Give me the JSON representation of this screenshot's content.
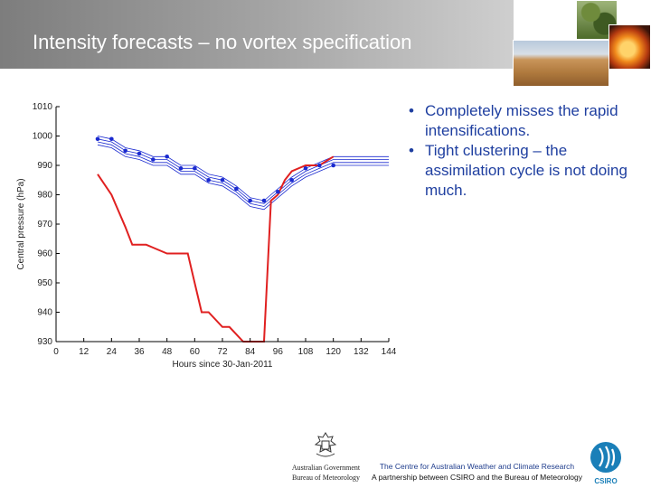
{
  "slide": {
    "title": "Intensity forecasts – no vortex specification",
    "bullets": [
      "Completely misses the rapid intensifications.",
      "Tight clustering – the assimilation cycle is not doing much."
    ],
    "footer": {
      "gov_line1": "Australian Government",
      "gov_line2": "Bureau of Meteorology",
      "centre_line1": "The Centre for Australian Weather and Climate Research",
      "centre_line2": "A partnership between CSIRO and the Bureau of Meteorology",
      "csiro_logo": "CSIRO"
    }
  },
  "chart_data": {
    "type": "line",
    "xlabel": "Hours since 30-Jan-2011",
    "ylabel": "Central pressure (hPa)",
    "xlim": [
      0,
      144
    ],
    "ylim": [
      930,
      1010
    ],
    "xticks": [
      0,
      12,
      24,
      36,
      48,
      60,
      72,
      84,
      96,
      108,
      120,
      132,
      144
    ],
    "yticks": [
      930,
      940,
      950,
      960,
      970,
      980,
      990,
      1000,
      1010
    ],
    "grid": false,
    "colors": {
      "observed": "#e02020",
      "ensemble": "#1a2ad0",
      "forecast_points": "#1a2ad0"
    },
    "series": [
      {
        "role": "observed",
        "x": [
          18,
          24,
          30,
          33,
          39,
          42,
          48,
          54,
          57,
          60,
          63,
          66,
          72,
          75,
          81,
          87,
          90,
          93,
          96,
          99,
          102,
          108,
          114,
          120
        ],
        "y": [
          987,
          980,
          969,
          963,
          963,
          962,
          960,
          960,
          960,
          950,
          940,
          940,
          935,
          935,
          930,
          930,
          930,
          978,
          980,
          985,
          988,
          990,
          990,
          993
        ]
      },
      {
        "role": "forecast_points",
        "x": [
          18,
          24,
          30,
          36,
          42,
          48,
          54,
          60,
          66,
          72,
          78,
          84,
          90,
          96,
          102,
          108,
          114,
          120
        ],
        "y": [
          999,
          999,
          995,
          994,
          992,
          993,
          989,
          989,
          985,
          985,
          982,
          978,
          978,
          981,
          985,
          989,
          990,
          990
        ]
      },
      {
        "role": "ensemble",
        "x": [
          18,
          24,
          30,
          36,
          42,
          48,
          54,
          60,
          66,
          72,
          78,
          84,
          90,
          96,
          102,
          108,
          114,
          120,
          126,
          132,
          138,
          144
        ],
        "y": [
          1000,
          999,
          996,
          995,
          993,
          993,
          990,
          990,
          987,
          986,
          983,
          979,
          978,
          982,
          986,
          989,
          991,
          993,
          993,
          993,
          993,
          993
        ]
      },
      {
        "role": "ensemble",
        "x": [
          18,
          24,
          30,
          36,
          42,
          48,
          54,
          60,
          66,
          72,
          78,
          84,
          90,
          96,
          102,
          108,
          114,
          120,
          126,
          132,
          138,
          144
        ],
        "y": [
          999,
          998,
          995,
          994,
          992,
          992,
          989,
          989,
          986,
          985,
          982,
          978,
          977,
          981,
          985,
          988,
          990,
          992,
          992,
          992,
          992,
          992
        ]
      },
      {
        "role": "ensemble",
        "x": [
          18,
          24,
          30,
          36,
          42,
          48,
          54,
          60,
          66,
          72,
          78,
          84,
          90,
          96,
          102,
          108,
          114,
          120,
          126,
          132,
          138,
          144
        ],
        "y": [
          998,
          997,
          994,
          993,
          991,
          991,
          988,
          988,
          985,
          984,
          981,
          977,
          976,
          980,
          984,
          987,
          989,
          991,
          991,
          991,
          991,
          991
        ]
      },
      {
        "role": "ensemble",
        "x": [
          18,
          24,
          30,
          36,
          42,
          48,
          54,
          60,
          66,
          72,
          78,
          84,
          90,
          96,
          102,
          108,
          114,
          120,
          126,
          132,
          138,
          144
        ],
        "y": [
          997,
          996,
          993,
          992,
          990,
          990,
          987,
          987,
          984,
          983,
          980,
          976,
          975,
          979,
          983,
          986,
          988,
          990,
          990,
          990,
          990,
          990
        ]
      }
    ]
  }
}
